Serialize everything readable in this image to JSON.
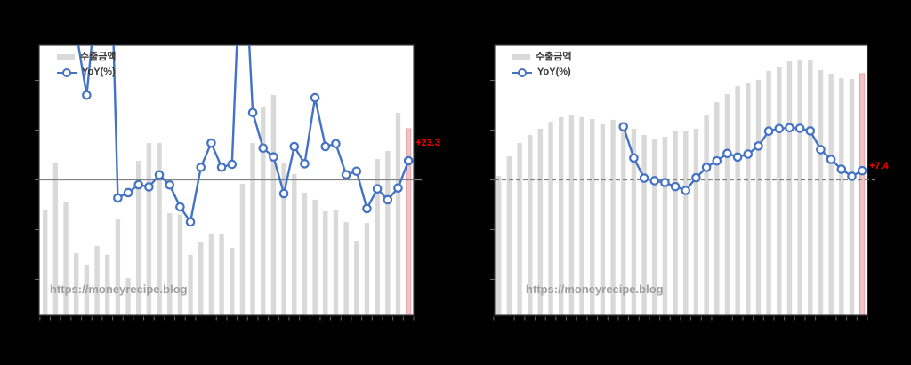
{
  "page": {
    "background": "#000000"
  },
  "colors": {
    "page_bg": "#000000",
    "plot_bg": "#ffffff",
    "plot_border": "#3c3c3c",
    "bar": "#d9d9d9",
    "bar_highlight_fill": "#f1c3c5",
    "bar_highlight_stroke": "#df9fa1",
    "line": "#4472c4",
    "marker_fill": "#ffffff",
    "zero_line": "#808080",
    "tick": "#6a6a6a",
    "legend_text": "#333333",
    "watermark": "#9e9e9e",
    "annotation": "#ff0000"
  },
  "charts": [
    {
      "name": "left-chart",
      "watermark": "https://moneyrecipe.blog"
    },
    {
      "name": "right-chart",
      "watermark": "https://moneyrecipe.blog"
    }
  ],
  "chart_data": [
    {
      "type": "combo-bar-line",
      "panel": "left",
      "title": "",
      "categories_note": "36 monthly periods; axis tick labels are not visible (black on black) in the source image",
      "n_points": 36,
      "legend_position": "top-left",
      "grid": false,
      "zero_line": "solid",
      "bar_axis_range": [
        0,
        100
      ],
      "line_axis_range": [
        -165,
        165
      ],
      "highlight_last_bar": true,
      "last_point_label": "+23.3",
      "series": [
        {
          "name": "수출금액",
          "type": "bar",
          "unit": "relative bar height, % of plot area (value axis labels not visible)",
          "values": [
            38.8,
            56.6,
            42.1,
            23,
            18.8,
            25.7,
            22.4,
            35.5,
            13.8,
            57.2,
            63.8,
            63.8,
            37.8,
            37.2,
            22.4,
            27,
            30.3,
            30.3,
            25,
            48.7,
            63.8,
            77.3,
            81.6,
            56.6,
            52.3,
            45.4,
            42.8,
            38.5,
            39.1,
            34.5,
            27.6,
            34.2,
            57.9,
            60.9,
            75,
            69.1
          ]
        },
        {
          "name": "YoY(%)",
          "type": "line",
          "unit": "%",
          "values": [
            null,
            null,
            null,
            180,
            103.5,
            230,
            440,
            -22.2,
            -15.7,
            -6,
            -8.7,
            6,
            -6.3,
            -33.1,
            -51.5,
            15.4,
            45,
            15.4,
            19,
            330,
            82.2,
            38.8,
            28,
            -16.8,
            40.7,
            19.7,
            100.3,
            40.7,
            44.2,
            6.3,
            10.6,
            -35.2,
            -11.1,
            -24.4,
            -10,
            23.3
          ],
          "clipped_above_axis_indices": [
            3,
            5,
            6,
            19
          ],
          "last_value": 23.3
        }
      ]
    },
    {
      "type": "combo-bar-line",
      "panel": "right",
      "title": "",
      "categories_note": "36 monthly periods; axis tick labels are not visible (black on black) in the source image",
      "n_points": 36,
      "legend_position": "top-left",
      "grid": false,
      "zero_line": "dashed",
      "bar_axis_range": [
        0,
        100
      ],
      "line_axis_range": [
        -109,
        109
      ],
      "highlight_last_bar": true,
      "last_point_label": "+7.4",
      "series": [
        {
          "name": "수출금액",
          "type": "bar",
          "unit": "relative bar height, % of plot area (value axis labels not visible)",
          "values": [
            51.6,
            58.9,
            63.8,
            66.8,
            69.1,
            71.7,
            73.4,
            74,
            73.4,
            72.7,
            70.7,
            72.4,
            70.7,
            69.1,
            66.8,
            65.1,
            66.1,
            68.1,
            68.4,
            69.1,
            74,
            78.9,
            81.9,
            84.9,
            86.2,
            87.2,
            90.5,
            92.1,
            94.1,
            94.4,
            94.7,
            90.8,
            89.5,
            87.8,
            87.5,
            89.5
          ]
        },
        {
          "name": "YoY(%)",
          "type": "line",
          "unit": "%",
          "values": [
            null,
            null,
            null,
            null,
            null,
            null,
            null,
            null,
            null,
            null,
            null,
            null,
            42.9,
            17.7,
            1.4,
            -0.7,
            -2.2,
            -5.5,
            -8.6,
            1.7,
            10.1,
            15.3,
            21.3,
            18.4,
            20.8,
            27.3,
            39.3,
            41.4,
            42.1,
            41.6,
            39.5,
            24.4,
            16.5,
            8.6,
            2.9,
            7.4
          ],
          "clipped_above_axis_indices": [],
          "last_value": 7.4
        }
      ]
    }
  ]
}
